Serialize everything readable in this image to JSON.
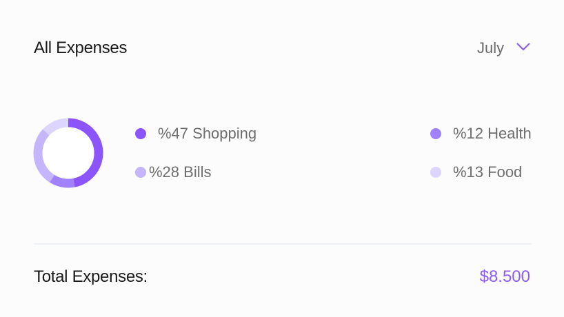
{
  "header": {
    "title": "All Expenses",
    "month": "July",
    "chevron_icon": "chevron-down-icon"
  },
  "colors": {
    "accent": "#8b5cf6"
  },
  "chart_data": {
    "type": "pie",
    "style": "donut",
    "slices": [
      {
        "label": "Shopping",
        "value": 47,
        "color": "#8b55fb"
      },
      {
        "label": "Health",
        "value": 12,
        "color": "#a182fc"
      },
      {
        "label": "Bills",
        "value": 28,
        "color": "#c4b5fd"
      },
      {
        "label": "Food",
        "value": 13,
        "color": "#ddd5fe"
      }
    ]
  },
  "legend": [
    {
      "text": "%47 Shopping",
      "color": "#8b55fb"
    },
    {
      "text": "%28 Bills",
      "color": "#c4b5fd"
    },
    {
      "text": "%12 Health",
      "color": "#a182fc"
    },
    {
      "text": "%13 Food",
      "color": "#ddd5fe"
    }
  ],
  "footer": {
    "label": "Total Expenses:",
    "value": "$8.500"
  }
}
